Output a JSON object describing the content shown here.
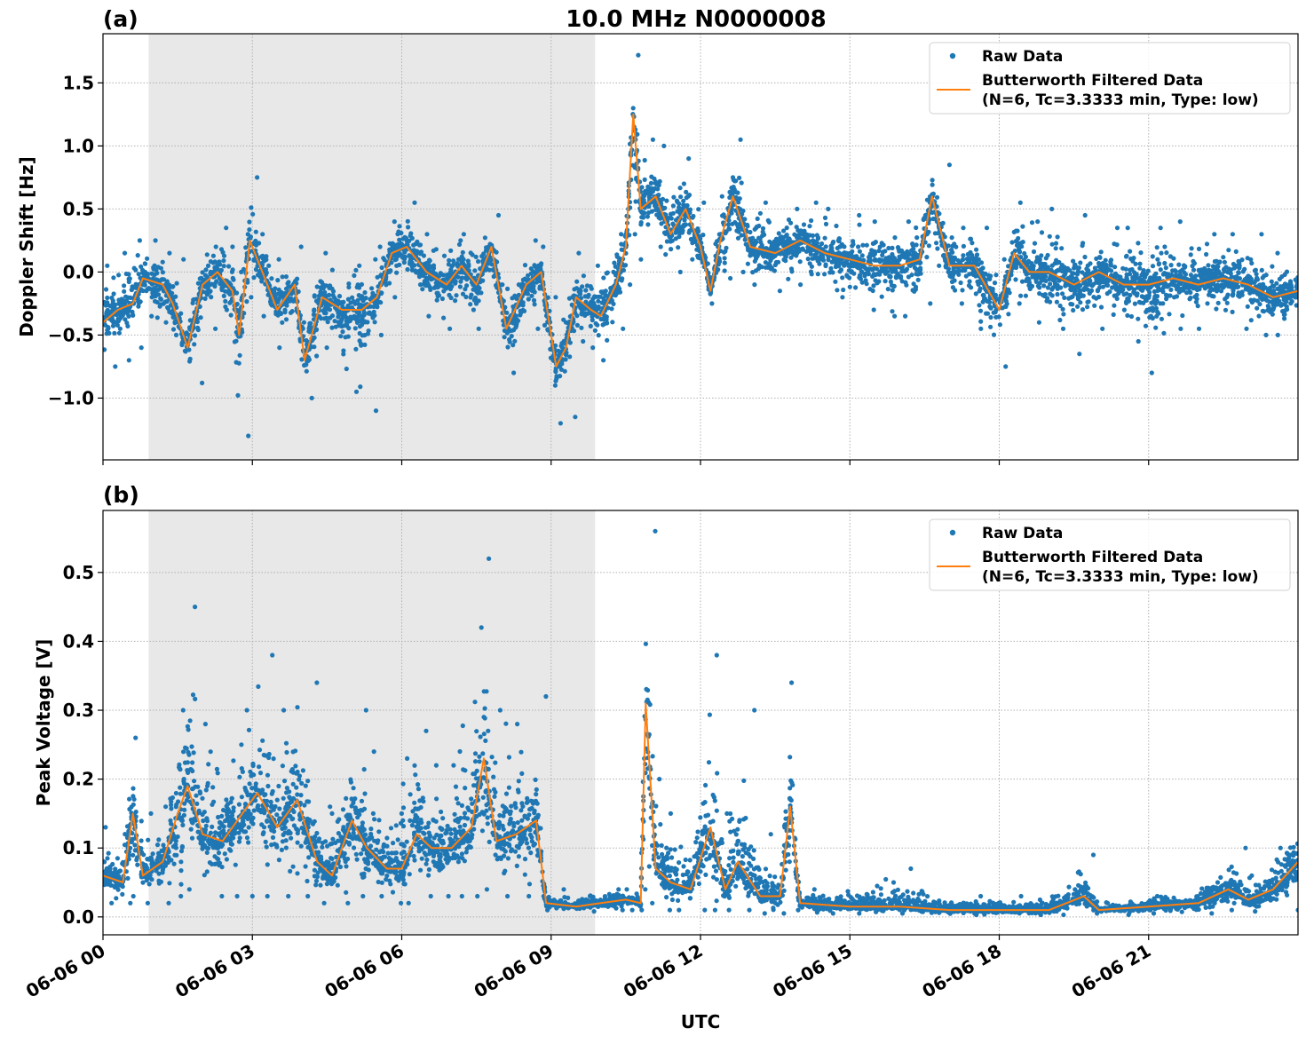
{
  "chart_data": [
    {
      "type": "scatter+line",
      "panel_label": "(a)",
      "title": "10.0 MHz N0000008",
      "xlabel": "",
      "ylabel": "Doppler Shift [Hz]",
      "xlim": [
        "06-06 00:00",
        "06-07 00:00"
      ],
      "ylim": [
        -1.49,
        1.89
      ],
      "xticks": [
        "06-06 00",
        "06-06 03",
        "06-06 06",
        "06-06 09",
        "06-06 12",
        "06-06 15",
        "06-06 18",
        "06-06 21"
      ],
      "yticks": [
        -1.0,
        -0.5,
        0.0,
        0.5,
        1.0,
        1.5
      ],
      "ytick_labels": [
        "−1.0",
        "−0.5",
        "0.0",
        "0.5",
        "1.0",
        "1.5"
      ],
      "grid": true,
      "shaded_interval": [
        "06-06 00:55",
        "06-06 09:53"
      ],
      "legend": {
        "placement": "top-right",
        "entries": [
          "Raw Data",
          "Butterworth Filtered Data",
          "(N=6, Tc=3.3333 min, Type: low)"
        ]
      },
      "colors": {
        "raw": "#1f77b4",
        "filtered": "#ff7f0e",
        "shade": "#e8e8e8"
      },
      "x": [
        "06-06 00:00",
        "06-06 00:18",
        "06-06 00:36",
        "06-06 00:48",
        "06-06 01:12",
        "06-06 01:24",
        "06-06 01:42",
        "06-06 02:00",
        "06-06 02:18",
        "06-06 02:36",
        "06-06 02:44",
        "06-06 02:57",
        "06-06 03:12",
        "06-06 03:30",
        "06-06 03:51",
        "06-06 04:03",
        "06-06 04:24",
        "06-06 04:48",
        "06-06 05:12",
        "06-06 05:30",
        "06-06 05:48",
        "06-06 06:06",
        "06-06 06:30",
        "06-06 06:54",
        "06-06 07:12",
        "06-06 07:30",
        "06-06 07:48",
        "06-06 08:06",
        "06-06 08:30",
        "06-06 08:48",
        "06-06 09:00",
        "06-06 09:06",
        "06-06 09:18",
        "06-06 09:30",
        "06-06 09:48",
        "06-06 10:00",
        "06-06 10:18",
        "06-06 10:30",
        "06-06 10:39",
        "06-06 10:48",
        "06-06 11:06",
        "06-06 11:24",
        "06-06 11:42",
        "06-06 12:00",
        "06-06 12:12",
        "06-06 12:24",
        "06-06 12:39",
        "06-06 13:00",
        "06-06 13:30",
        "06-06 14:00",
        "06-06 14:30",
        "06-06 15:00",
        "06-06 15:30",
        "06-06 16:00",
        "06-06 16:24",
        "06-06 16:39",
        "06-06 17:00",
        "06-06 17:30",
        "06-06 18:00",
        "06-06 18:18",
        "06-06 18:36",
        "06-06 19:00",
        "06-06 19:30",
        "06-06 20:00",
        "06-06 20:30",
        "06-06 21:00",
        "06-06 21:30",
        "06-06 22:00",
        "06-06 22:30",
        "06-06 23:00",
        "06-06 23:30",
        "06-07 00:00"
      ],
      "series": [
        {
          "name": "Butterworth Filtered Data",
          "kind": "line",
          "values": [
            -0.4,
            -0.3,
            -0.25,
            -0.05,
            -0.1,
            -0.25,
            -0.6,
            -0.1,
            0.0,
            -0.15,
            -0.5,
            0.25,
            0.0,
            -0.3,
            -0.1,
            -0.7,
            -0.2,
            -0.3,
            -0.3,
            -0.2,
            0.15,
            0.2,
            0.0,
            -0.1,
            0.05,
            -0.1,
            0.2,
            -0.45,
            -0.1,
            0.0,
            -0.5,
            -0.75,
            -0.6,
            -0.2,
            -0.3,
            -0.35,
            -0.1,
            0.2,
            1.25,
            0.5,
            0.6,
            0.3,
            0.5,
            0.2,
            -0.15,
            0.25,
            0.6,
            0.2,
            0.15,
            0.25,
            0.15,
            0.1,
            0.05,
            0.05,
            0.1,
            0.6,
            0.05,
            0.05,
            -0.3,
            0.15,
            0.0,
            0.0,
            -0.1,
            0.0,
            -0.1,
            -0.1,
            -0.05,
            -0.1,
            -0.05,
            -0.1,
            -0.2,
            -0.15
          ]
        },
        {
          "name": "Raw Data",
          "kind": "scatter-envelope",
          "min": [
            -0.75,
            -0.7,
            -0.6,
            -0.35,
            -0.4,
            -0.5,
            -0.88,
            -0.45,
            -0.3,
            -0.5,
            -1.3,
            -0.2,
            -0.35,
            -0.6,
            -0.4,
            -1.0,
            -0.6,
            -0.95,
            -1.1,
            -0.5,
            -0.2,
            -0.1,
            -0.35,
            -0.45,
            -0.3,
            -0.45,
            -0.1,
            -0.8,
            -0.45,
            -0.3,
            -0.9,
            -1.2,
            -1.15,
            -0.55,
            -0.6,
            -0.7,
            -0.45,
            -0.1,
            0.3,
            0.1,
            0.2,
            0.0,
            0.1,
            -0.05,
            -0.25,
            -0.05,
            0.0,
            -0.1,
            -0.15,
            -0.1,
            -0.2,
            -0.3,
            -0.35,
            -0.35,
            -0.25,
            0.0,
            -0.25,
            -0.45,
            -0.75,
            -0.25,
            -0.4,
            -0.45,
            -0.65,
            -0.45,
            -0.55,
            -0.8,
            -0.45,
            -0.45,
            -0.45,
            -0.5,
            -0.5,
            -0.45
          ],
          "max": [
            0.05,
            0.15,
            0.25,
            0.25,
            0.15,
            0.1,
            -0.2,
            0.2,
            0.35,
            0.2,
            0.0,
            0.75,
            0.3,
            0.1,
            0.2,
            -0.3,
            0.15,
            0.05,
            0.1,
            0.2,
            0.4,
            0.55,
            0.3,
            0.25,
            0.3,
            0.2,
            0.45,
            -0.1,
            0.25,
            0.2,
            -0.2,
            -0.4,
            -0.3,
            0.15,
            0.05,
            0.0,
            0.3,
            0.5,
            1.72,
            1.05,
            1.0,
            0.7,
            0.9,
            0.55,
            0.2,
            0.6,
            1.05,
            0.55,
            0.5,
            0.55,
            0.5,
            0.45,
            0.4,
            0.4,
            0.45,
            0.85,
            0.35,
            0.35,
            0.1,
            0.55,
            0.4,
            0.5,
            0.45,
            0.35,
            0.35,
            0.35,
            0.4,
            0.3,
            0.3,
            0.3,
            0.15,
            0.1
          ]
        }
      ]
    },
    {
      "type": "scatter+line",
      "panel_label": "(b)",
      "title": "",
      "xlabel": "UTC",
      "ylabel": "Peak Voltage [V]",
      "xlim": [
        "06-06 00:00",
        "06-07 00:00"
      ],
      "ylim": [
        -0.026,
        0.59
      ],
      "xticks": [
        "06-06 00",
        "06-06 03",
        "06-06 06",
        "06-06 09",
        "06-06 12",
        "06-06 15",
        "06-06 18",
        "06-06 21"
      ],
      "yticks": [
        0.0,
        0.1,
        0.2,
        0.3,
        0.4,
        0.5
      ],
      "ytick_labels": [
        "0.0",
        "0.1",
        "0.2",
        "0.3",
        "0.4",
        "0.5"
      ],
      "grid": true,
      "shaded_interval": [
        "06-06 00:55",
        "06-06 09:53"
      ],
      "legend": {
        "placement": "top-right",
        "entries": [
          "Raw Data",
          "Butterworth Filtered Data",
          "(N=6, Tc=3.3333 min, Type: low)"
        ]
      },
      "colors": {
        "raw": "#1f77b4",
        "filtered": "#ff7f0e",
        "shade": "#e8e8e8"
      },
      "x": [
        "06-06 00:00",
        "06-06 00:24",
        "06-06 00:36",
        "06-06 00:48",
        "06-06 01:12",
        "06-06 01:30",
        "06-06 01:42",
        "06-06 02:00",
        "06-06 02:24",
        "06-06 02:48",
        "06-06 03:06",
        "06-06 03:30",
        "06-06 03:54",
        "06-06 04:18",
        "06-06 04:36",
        "06-06 05:00",
        "06-06 05:18",
        "06-06 05:42",
        "06-06 06:00",
        "06-06 06:18",
        "06-06 06:36",
        "06-06 07:00",
        "06-06 07:24",
        "06-06 07:39",
        "06-06 07:54",
        "06-06 08:18",
        "06-06 08:42",
        "06-06 08:54",
        "06-06 09:30",
        "06-06 10:00",
        "06-06 10:30",
        "06-06 10:48",
        "06-06 10:54",
        "06-06 11:06",
        "06-06 11:24",
        "06-06 11:48",
        "06-06 12:12",
        "06-06 12:30",
        "06-06 12:45",
        "06-06 13:12",
        "06-06 13:36",
        "06-06 13:48",
        "06-06 14:00",
        "06-06 15:00",
        "06-06 16:00",
        "06-06 17:00",
        "06-06 18:00",
        "06-06 19:00",
        "06-06 19:42",
        "06-06 20:00",
        "06-06 21:00",
        "06-06 22:00",
        "06-06 22:36",
        "06-06 23:00",
        "06-06 23:30",
        "06-07 00:00"
      ],
      "series": [
        {
          "name": "Butterworth Filtered Data",
          "kind": "line",
          "values": [
            0.06,
            0.05,
            0.15,
            0.06,
            0.08,
            0.15,
            0.19,
            0.12,
            0.11,
            0.15,
            0.18,
            0.13,
            0.17,
            0.08,
            0.06,
            0.14,
            0.1,
            0.07,
            0.07,
            0.12,
            0.1,
            0.1,
            0.13,
            0.23,
            0.11,
            0.12,
            0.14,
            0.02,
            0.015,
            0.02,
            0.025,
            0.02,
            0.31,
            0.07,
            0.05,
            0.04,
            0.13,
            0.04,
            0.08,
            0.03,
            0.03,
            0.16,
            0.02,
            0.015,
            0.015,
            0.01,
            0.01,
            0.01,
            0.03,
            0.01,
            0.015,
            0.02,
            0.04,
            0.025,
            0.04,
            0.08
          ]
        },
        {
          "name": "Raw Data",
          "kind": "scatter-envelope",
          "min": [
            0.02,
            0.02,
            0.03,
            0.02,
            0.02,
            0.03,
            0.04,
            0.03,
            0.03,
            0.03,
            0.03,
            0.03,
            0.03,
            0.02,
            0.02,
            0.03,
            0.03,
            0.02,
            0.02,
            0.03,
            0.03,
            0.03,
            0.03,
            0.04,
            0.03,
            0.03,
            0.03,
            0.01,
            0.008,
            0.01,
            0.01,
            0.01,
            0.02,
            0.01,
            0.01,
            0.01,
            0.01,
            0.01,
            0.01,
            0.005,
            0.005,
            0.01,
            0.005,
            0.005,
            0.005,
            0.003,
            0.003,
            0.003,
            0.005,
            0.003,
            0.005,
            0.005,
            0.01,
            0.008,
            0.01,
            0.02
          ],
          "max": [
            0.13,
            0.12,
            0.26,
            0.15,
            0.16,
            0.3,
            0.45,
            0.28,
            0.25,
            0.3,
            0.38,
            0.3,
            0.34,
            0.16,
            0.15,
            0.3,
            0.24,
            0.15,
            0.23,
            0.27,
            0.22,
            0.22,
            0.42,
            0.52,
            0.3,
            0.28,
            0.32,
            0.04,
            0.03,
            0.04,
            0.04,
            0.04,
            0.56,
            0.2,
            0.15,
            0.12,
            0.38,
            0.15,
            0.3,
            0.12,
            0.08,
            0.34,
            0.04,
            0.05,
            0.07,
            0.03,
            0.03,
            0.03,
            0.09,
            0.02,
            0.03,
            0.05,
            0.1,
            0.06,
            0.1,
            0.18
          ]
        }
      ]
    }
  ]
}
